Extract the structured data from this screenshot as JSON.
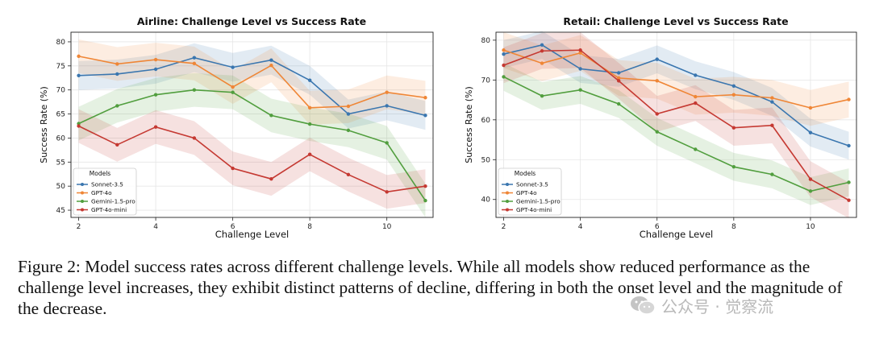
{
  "chart_data": [
    {
      "type": "line",
      "title": "Airline: Challenge Level vs Success Rate",
      "xlabel": "Challenge Level",
      "ylabel": "Success Rate (%)",
      "x": [
        2,
        3,
        4,
        5,
        6,
        7,
        8,
        9,
        10,
        11
      ],
      "xticks": [
        "2",
        "4",
        "6",
        "8",
        "10"
      ],
      "xtick_values": [
        2,
        4,
        6,
        8,
        10
      ],
      "yticks": [
        "45",
        "50",
        "55",
        "60",
        "65",
        "70",
        "75",
        "80"
      ],
      "ytick_values": [
        45,
        50,
        55,
        60,
        65,
        70,
        75,
        80
      ],
      "xlim": [
        1.8,
        11.2
      ],
      "ylim": [
        43.5,
        82
      ],
      "legend_title": "Models",
      "legend_position": "lower-left",
      "grid": true,
      "series": [
        {
          "name": "Sonnet-3.5",
          "color": "#3a76af",
          "values": [
            73,
            73.3,
            74.3,
            76.7,
            74.7,
            76.2,
            72,
            65,
            66.7,
            64.7
          ],
          "band": 3
        },
        {
          "name": "GPT-4o",
          "color": "#ef8636",
          "values": [
            77,
            75.4,
            76.3,
            75.5,
            70.6,
            75.1,
            66.3,
            66.6,
            69.5,
            68.4
          ],
          "band": 3.5
        },
        {
          "name": "Gemini-1.5-pro",
          "color": "#519e3e",
          "values": [
            63,
            66.7,
            69,
            70,
            69.5,
            64.7,
            62.9,
            61.6,
            59,
            47
          ],
          "band": 3.5
        },
        {
          "name": "GPT-4o-mini",
          "color": "#c53932",
          "values": [
            62.5,
            58.6,
            62.3,
            60,
            53.7,
            51.5,
            56.6,
            52.4,
            48.8,
            50
          ],
          "band": 3.5
        }
      ]
    },
    {
      "type": "line",
      "title": "Retail: Challenge Level vs Success Rate",
      "xlabel": "Challenge Level",
      "ylabel": "Success Rate (%)",
      "x": [
        2,
        3,
        4,
        5,
        6,
        7,
        8,
        9,
        10,
        11
      ],
      "xticks": [
        "2",
        "4",
        "6",
        "8",
        "10"
      ],
      "xtick_values": [
        2,
        4,
        6,
        8,
        10
      ],
      "yticks": [
        "40",
        "50",
        "60",
        "70",
        "80"
      ],
      "ytick_values": [
        40,
        50,
        60,
        70,
        80
      ],
      "xlim": [
        1.8,
        11.2
      ],
      "ylim": [
        35.5,
        82
      ],
      "legend_title": "Models",
      "legend_position": "lower-left",
      "grid": true,
      "series": [
        {
          "name": "Sonnet-3.5",
          "color": "#3a76af",
          "values": [
            76.5,
            78.8,
            72.8,
            71.8,
            75.2,
            71.2,
            68.5,
            64.5,
            56.8,
            53.5
          ],
          "band": 3.5
        },
        {
          "name": "GPT-4o",
          "color": "#ef8636",
          "values": [
            77.5,
            74.2,
            76.8,
            70.5,
            69.8,
            65.8,
            66.3,
            65.5,
            63,
            65.1
          ],
          "band": 4.5
        },
        {
          "name": "Gemini-1.5-pro",
          "color": "#519e3e",
          "values": [
            70.8,
            66,
            67.5,
            64,
            57,
            52.6,
            48.2,
            46.3,
            42.1,
            44.3
          ],
          "band": 3.5
        },
        {
          "name": "GPT-4o-mini",
          "color": "#c53932",
          "values": [
            73.7,
            77.3,
            77.5,
            69.8,
            61.5,
            64.2,
            58,
            58.6,
            45.1,
            39.8
          ],
          "band": 4.5
        }
      ]
    }
  ],
  "caption": "Figure 2: Model success rates across different challenge levels. While all models show reduced performance as the challenge level increases, they exhibit distinct patterns of decline, differing in both the onset level and the magnitude of the decrease.",
  "watermark": "公众号 · 觉察流"
}
